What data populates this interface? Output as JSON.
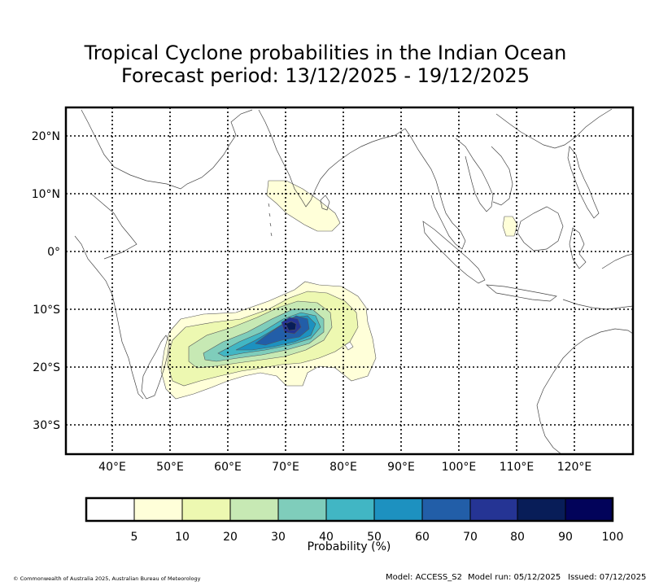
{
  "title": {
    "line1": "Tropical Cyclone probabilities in the Indian Ocean",
    "line2": "Forecast period: 13/12/2025 - 19/12/2025"
  },
  "map": {
    "lat_labels": [
      "20°N",
      "10°N",
      "0°",
      "10°S",
      "20°S",
      "30°S"
    ],
    "lon_labels": [
      "40°E",
      "50°E",
      "60°E",
      "70°E",
      "80°E",
      "90°E",
      "100°E",
      "110°E",
      "120°E"
    ],
    "contour_levels": [
      5,
      10,
      20,
      30,
      40,
      50,
      60,
      70,
      80,
      90,
      100
    ],
    "colors": [
      "#ffffff",
      "#ffffd9",
      "#edf8b1",
      "#c7e9b4",
      "#7fcdbb",
      "#41b6c4",
      "#1d91c0",
      "#225ea8",
      "#253494",
      "#081d58",
      "#02035a"
    ]
  },
  "colorbar": {
    "ticks": [
      "5",
      "10",
      "20",
      "30",
      "40",
      "50",
      "60",
      "70",
      "80",
      "90",
      "100"
    ],
    "label": "Probability (%)"
  },
  "footer": {
    "copyright": "© Commonwealth of Australia 2025, Australian Bureau of Meteorology",
    "model": "Model: ACCESS_S2",
    "model_run": "Model run: 05/12/2025",
    "issued": "Issued: 07/12/2025"
  }
}
